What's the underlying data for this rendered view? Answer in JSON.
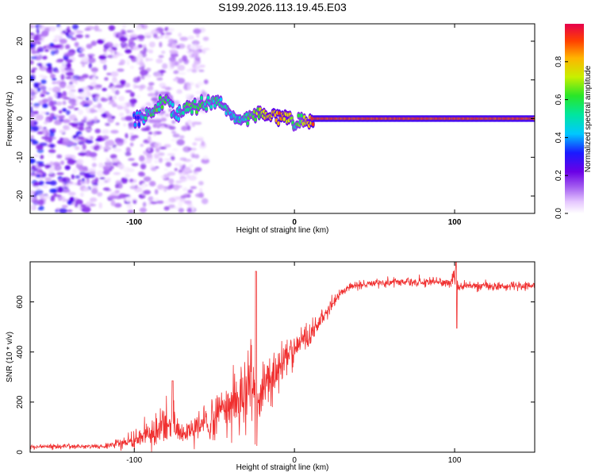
{
  "figure": {
    "title": "S199.2026.113.19.45.E03"
  },
  "chart_data": [
    {
      "type": "heatmap",
      "name": "spectrogram",
      "xlabel": "Height of straight line (km)",
      "ylabel": "Frequency (Hz)",
      "xlim": [
        -165,
        150
      ],
      "ylim": [
        -24.5,
        24.5
      ],
      "xticks": [
        -100,
        0,
        100
      ],
      "yticks": [
        -20,
        -10,
        0,
        10,
        20
      ],
      "colorbar": {
        "label": "Normalized spectral amplitude",
        "range": [
          0,
          1
        ],
        "ticks": [
          "0.0",
          "0.2",
          "0.4",
          "0.6",
          "0.8"
        ],
        "colors": [
          "#ffffff",
          "#e6c8ff",
          "#a35cf0",
          "#6a00e6",
          "#1a1aff",
          "#00c8ff",
          "#00e6a0",
          "#28e628",
          "#c8f000",
          "#ffb400",
          "#ff4000",
          "#e6004d"
        ]
      },
      "ridge": {
        "description": "strong narrowband line near 0 Hz",
        "x": [
          -165,
          -100,
          -92,
          -85,
          -80,
          -75,
          -68,
          -60,
          -55,
          -48,
          -42,
          -35,
          -28,
          -22,
          -15,
          -8,
          -3,
          0,
          5,
          10,
          12,
          150
        ],
        "freq": [
          0,
          0,
          0.5,
          3,
          6,
          1,
          3,
          3,
          4,
          5,
          2,
          -1,
          0.5,
          1,
          0.5,
          0.3,
          0.5,
          -1,
          -1,
          -0.5,
          0,
          0
        ],
        "amplitude": [
          0.0,
          0.35,
          0.55,
          0.6,
          0.6,
          0.45,
          0.6,
          0.65,
          0.55,
          0.55,
          0.5,
          0.5,
          0.6,
          0.7,
          0.8,
          0.85,
          0.75,
          0.55,
          0.65,
          0.8,
          0.9,
          0.9
        ]
      },
      "noise": {
        "description": "broadband scattered noise strongest at low heights",
        "x_range": [
          -165,
          -75
        ],
        "freq_range": [
          -24,
          24
        ],
        "amplitude_range": [
          0.02,
          0.4
        ]
      }
    },
    {
      "type": "line",
      "name": "snr",
      "xlabel": "Height of straight line (km)",
      "ylabel": "SNR (10 * v/v)",
      "xlim": [
        -165,
        150
      ],
      "ylim": [
        0,
        760
      ],
      "xticks": [
        -100,
        0,
        100
      ],
      "yticks": [
        0,
        200,
        400,
        600
      ],
      "color": "#f03030",
      "series": [
        {
          "name": "SNR",
          "x": [
            -165,
            -120,
            -105,
            -95,
            -85,
            -78,
            -70,
            -60,
            -50,
            -40,
            -32,
            -26,
            -22,
            -15,
            -8,
            0,
            10,
            20,
            28,
            35,
            50,
            80,
            98,
            100,
            102,
            110,
            130,
            150
          ],
          "mean": [
            22,
            22,
            40,
            60,
            90,
            110,
            70,
            90,
            140,
            180,
            220,
            280,
            180,
            300,
            360,
            420,
            470,
            560,
            630,
            660,
            678,
            680,
            675,
            720,
            660,
            665,
            662,
            665
          ],
          "noise": [
            10,
            10,
            25,
            40,
            60,
            60,
            40,
            60,
            90,
            120,
            150,
            200,
            130,
            110,
            90,
            70,
            50,
            30,
            20,
            18,
            18,
            18,
            18,
            60,
            18,
            18,
            18,
            18
          ]
        }
      ],
      "annotations": [
        {
          "x": -76,
          "y": 285,
          "text": "spike"
        },
        {
          "x": -24,
          "y": 722,
          "text": "spike"
        },
        {
          "x": 101,
          "y": 770,
          "text": "spike"
        },
        {
          "x": 101,
          "y": 495,
          "text": "dip"
        }
      ]
    }
  ]
}
